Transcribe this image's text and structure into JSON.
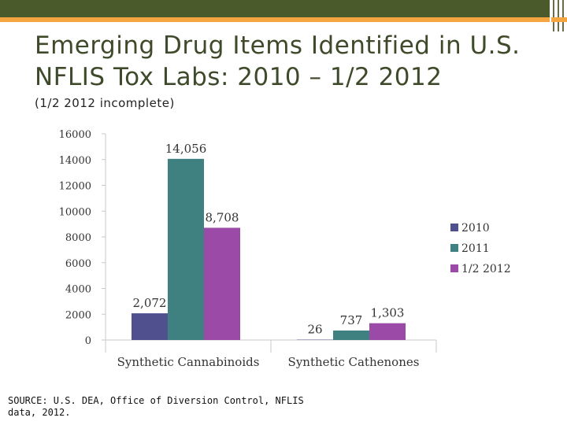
{
  "slide": {
    "title": "Emerging Drug Items Identified in U.S. NFLIS Tox Labs: 2010 – 1/2 2012",
    "subtitle": "(1/2 2012 incomplete)",
    "source": "SOURCE: U.S. DEA, Office of Diversion Control,  NFLIS data, 2012."
  },
  "chart_data": {
    "type": "bar",
    "categories": [
      "Synthetic Cannabinoids",
      "Synthetic Cathenones"
    ],
    "series": [
      {
        "name": "2010",
        "values": [
          2072,
          26
        ],
        "labels": [
          "2,072",
          "26"
        ],
        "color": "#50508f"
      },
      {
        "name": "2011",
        "values": [
          14056,
          737
        ],
        "labels": [
          "14,056",
          "737"
        ],
        "color": "#3f8080"
      },
      {
        "name": "1/2 2012",
        "values": [
          8708,
          1303
        ],
        "labels": [
          "8,708",
          "1,303"
        ],
        "color": "#9c4aa8"
      }
    ],
    "yticks": [
      "0",
      "2000",
      "4000",
      "6000",
      "8000",
      "10000",
      "12000",
      "14000",
      "16000"
    ],
    "ylim": [
      0,
      16000
    ],
    "grid": false,
    "legend_position": "right"
  }
}
